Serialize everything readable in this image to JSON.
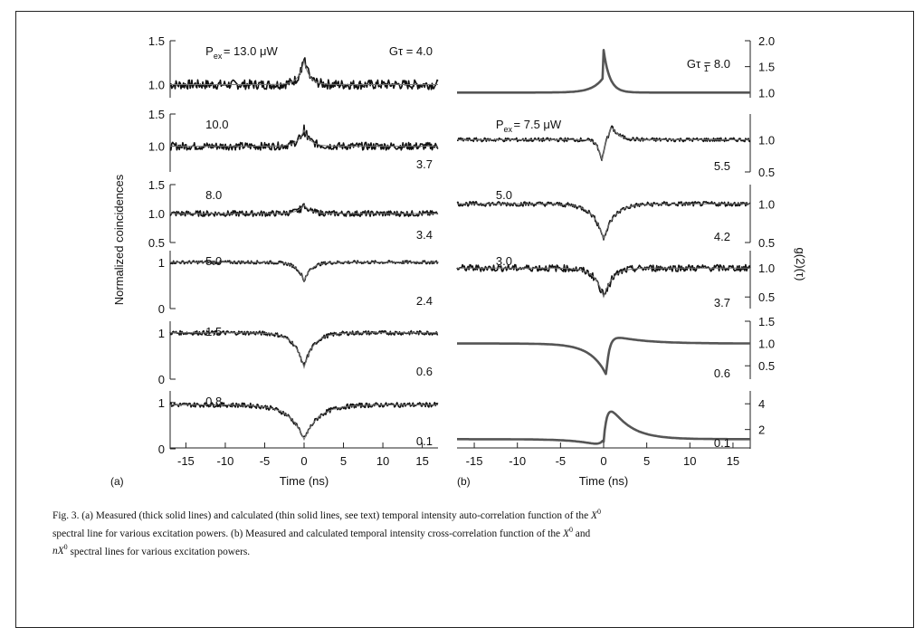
{
  "caption": {
    "line1a": "Fig. 3. (a) Measured (thick solid lines) and calculated (thin solid lines, see text) temporal intensity auto-correlation function of the ",
    "symbol_x": "X",
    "sup_zero": "0",
    "line2a": "spectral line for various excitation powers. (b) Measured and calculated temporal intensity cross-correlation function of the ",
    "line2b": " and",
    "symbol_nx": "nX",
    "line3": " spectral lines for various excitation powers."
  },
  "chart_data": [
    {
      "type": "line",
      "panel_label": "(a)",
      "ylabel": "Normalized coincidences",
      "xlabel": "Time (ns)",
      "xlim": [
        -17,
        17
      ],
      "xticks": [
        -15,
        -10,
        -5,
        0,
        5,
        10,
        15
      ],
      "subplots": [
        {
          "label": "P_ex = 13.0 μW",
          "left_text": "P",
          "left_sub": "ex",
          "left_rest": " = 13.0 μW",
          "right_text": "Gτ = 4.0",
          "ylim": [
            0.85,
            1.5
          ],
          "yticks": [
            1.0,
            1.5
          ],
          "ytick_labels": [
            "1.0",
            "1.5"
          ],
          "baseline": 1.0,
          "feature": "bump",
          "amplitude": 0.27,
          "width": 0.7,
          "noise": 0.055
        },
        {
          "left_text": "10.0",
          "right_text": "3.7",
          "ylim": [
            0.6,
            1.5
          ],
          "yticks": [
            0.5,
            1.0,
            1.5
          ],
          "ytick_labels": [
            "",
            "1.0",
            "1.5"
          ],
          "baseline": 1.0,
          "feature": "bump",
          "amplitude": 0.25,
          "width": 0.8,
          "noise": 0.06
        },
        {
          "left_text": "8.0",
          "right_text": "3.4",
          "ylim": [
            0.5,
            1.5
          ],
          "yticks": [
            0.5,
            1.0,
            1.5
          ],
          "ytick_labels": [
            "0.5",
            "1.0",
            "1.5"
          ],
          "baseline": 1.0,
          "feature": "bump",
          "amplitude": 0.15,
          "width": 0.8,
          "noise": 0.05
        },
        {
          "left_text": "5.0",
          "right_text": "2.4",
          "ylim": [
            0,
            1.25
          ],
          "yticks": [
            0,
            1
          ],
          "ytick_labels": [
            "0",
            "1"
          ],
          "baseline": 1.0,
          "feature": "dip",
          "amplitude": 0.4,
          "width": 0.9,
          "noise": 0.035
        },
        {
          "left_text": "1.5",
          "right_text": "0.6",
          "ylim": [
            0,
            1.25
          ],
          "yticks": [
            0,
            1
          ],
          "ytick_labels": [
            "0",
            "1"
          ],
          "baseline": 1.0,
          "feature": "dip",
          "amplitude": 0.75,
          "width": 1.2,
          "noise": 0.045
        },
        {
          "left_text": "0.8",
          "right_text": "0.1",
          "ylim": [
            0,
            1.25
          ],
          "yticks": [
            0,
            1
          ],
          "ytick_labels": [
            "0",
            "1"
          ],
          "baseline": 0.95,
          "feature": "dip",
          "amplitude": 0.75,
          "width": 1.8,
          "noise": 0.05
        }
      ]
    },
    {
      "type": "line",
      "panel_label": "(b)",
      "ylabel": "g(2)(τ)",
      "xlabel": "Time (ns)",
      "xlim": [
        -17,
        17
      ],
      "xticks": [
        -15,
        -10,
        -5,
        0,
        5,
        10,
        15
      ],
      "subplots": [
        {
          "left_text": "",
          "right_text": "Gτ",
          "right_sub": "1",
          "right_rest": " = 8.0",
          "ylim": [
            0.9,
            2.0
          ],
          "yticks": [
            1.0,
            1.5,
            2.0
          ],
          "ytick_labels": [
            "1.0",
            "1.5",
            "2.0"
          ],
          "baseline": 1.0,
          "feature": "asym_bump",
          "amplitude": 0.82,
          "width": 1.0,
          "noise": 0.0
        },
        {
          "left_text": "P",
          "left_sub": "ex",
          "left_rest": " = 7.5 μW",
          "right_text": "5.5",
          "ylim": [
            0.5,
            1.4
          ],
          "yticks": [
            0.5,
            1.0
          ],
          "ytick_labels": [
            "0.5",
            "1.0"
          ],
          "baseline": 1.0,
          "feature": "dip_bump",
          "amplitude": 0.4,
          "width": 0.8,
          "noise": 0.03
        },
        {
          "left_text": "5.0",
          "right_text": "4.2",
          "ylim": [
            0.5,
            1.25
          ],
          "yticks": [
            0.5,
            1.0
          ],
          "ytick_labels": [
            "0.5",
            "1.0"
          ],
          "baseline": 1.0,
          "feature": "dip",
          "amplitude": 0.45,
          "width": 1.2,
          "noise": 0.03
        },
        {
          "left_text": "3.0",
          "right_text": "3.7",
          "ylim": [
            0.3,
            1.3
          ],
          "yticks": [
            0.5,
            1.0
          ],
          "ytick_labels": [
            "0.5",
            "1.0"
          ],
          "baseline": 1.0,
          "feature": "dip",
          "amplitude": 0.5,
          "width": 1.0,
          "noise": 0.06
        },
        {
          "left_text": "",
          "right_text": "0.6",
          "ylim": [
            0.2,
            1.5
          ],
          "yticks": [
            0.5,
            1.0,
            1.5
          ],
          "ytick_labels": [
            "0.5",
            "1.0",
            "1.5"
          ],
          "baseline": 1.0,
          "feature": "dip_bump_smooth",
          "amplitude": 0.7,
          "width": 1.8,
          "noise": 0.0
        },
        {
          "left_text": "",
          "right_text": "0.1",
          "ylim": [
            0.5,
            5.0
          ],
          "yticks": [
            2,
            4
          ],
          "ytick_labels": [
            "2",
            "4"
          ],
          "baseline": 1.0,
          "feature": "step_bump",
          "amplitude": 3.9,
          "width": 2.0,
          "noise": 0.0
        }
      ]
    }
  ]
}
